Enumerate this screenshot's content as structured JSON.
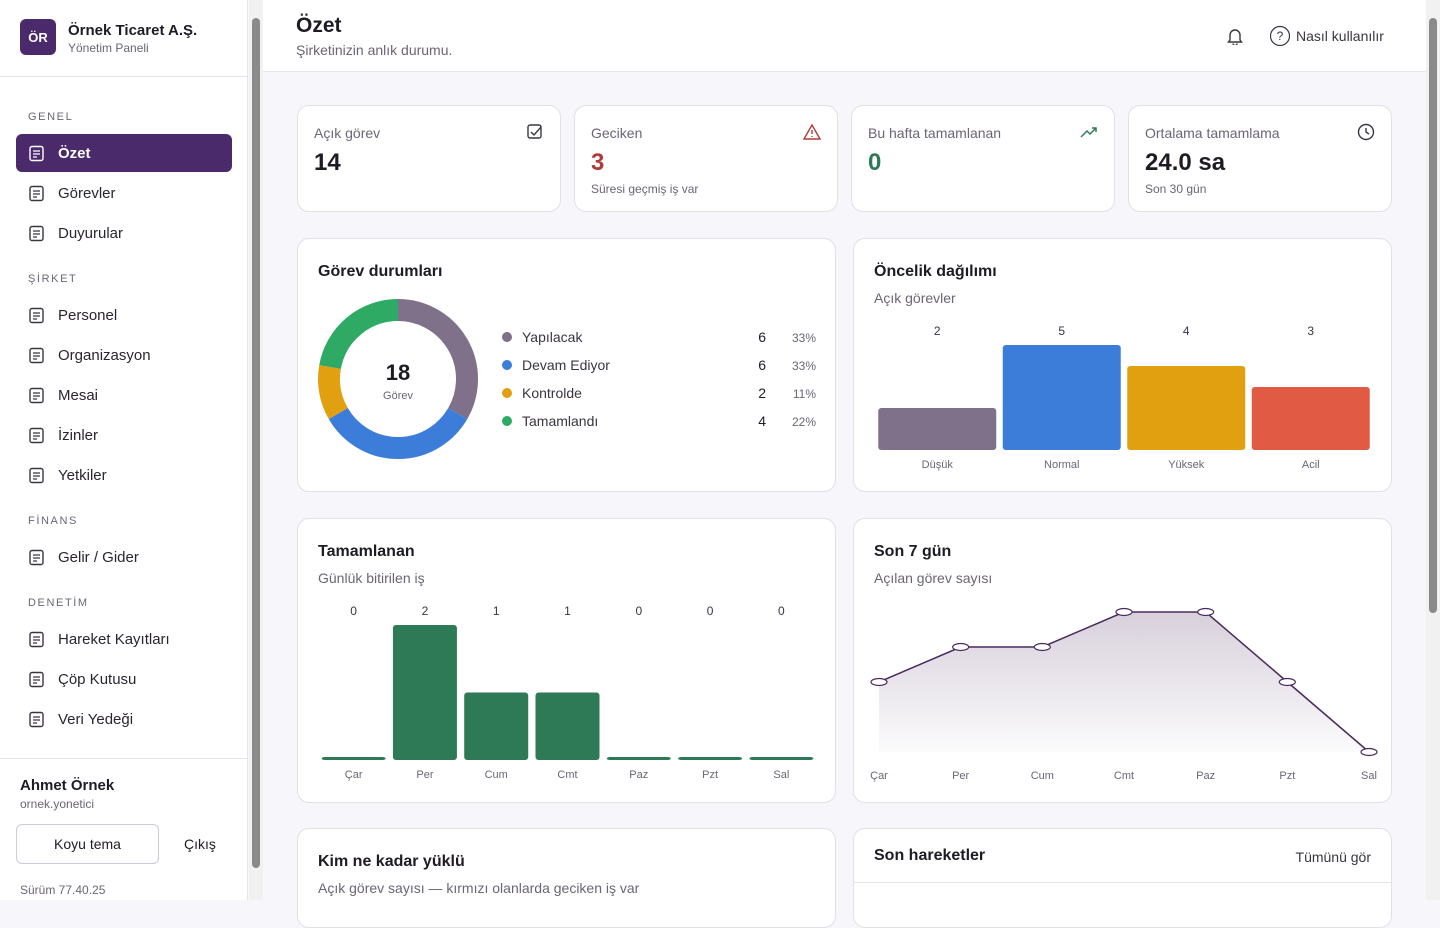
{
  "sidebar": {
    "logo": "ÖR",
    "company": "Örnek Ticaret A.Ş.",
    "subtitle": "Yönetim Paneli",
    "sections": [
      {
        "title": "GENEL",
        "items": [
          "Özet",
          "Görevler",
          "Duyurular"
        ]
      },
      {
        "title": "ŞİRKET",
        "items": [
          "Personel",
          "Organizasyon",
          "Mesai",
          "İzinler",
          "Yetkiler"
        ]
      },
      {
        "title": "FİNANS",
        "items": [
          "Gelir / Gider"
        ]
      },
      {
        "title": "DENETİM",
        "items": [
          "Hareket Kayıtları",
          "Çöp Kutusu",
          "Veri Yedeği"
        ]
      }
    ],
    "user": {
      "name": "Ahmet Örnek",
      "username": "ornek.yonetici"
    },
    "theme_button": "Koyu tema",
    "logout": "Çıkış",
    "version": "Sürüm 77.40.25"
  },
  "header": {
    "title": "Özet",
    "subtitle": "Şirketinizin anlık durumu.",
    "help": "Nasıl kullanılır"
  },
  "kpis": [
    {
      "label": "Açık görev",
      "value": 14
    },
    {
      "label": "Geciken",
      "value": 3,
      "note": "Süresi geçmiş iş var"
    },
    {
      "label": "Bu hafta tamamlanan",
      "value": 0
    },
    {
      "label": "Ortalama tamamlama",
      "value": "24.0 sa",
      "note": "Son 30 gün"
    }
  ],
  "chart_data": [
    {
      "type": "donut",
      "title": "Görev durumları",
      "center_value": 18,
      "center_label": "Görev",
      "categories": [
        "Yapılacak",
        "Devam Ediyor",
        "Kontrolde",
        "Tamamlandı"
      ],
      "values": [
        6,
        6,
        2,
        4
      ],
      "percent_labels": [
        "33%",
        "33%",
        "11%",
        "22%"
      ],
      "colors": [
        "#7e7189",
        "#3b7dd8",
        "#e0a010",
        "#2eaa64"
      ]
    },
    {
      "type": "bar",
      "title": "Öncelik dağılımı",
      "subtitle": "Açık görevler",
      "categories": [
        "Düşük",
        "Normal",
        "Yüksek",
        "Acil"
      ],
      "values": [
        2,
        5,
        4,
        3
      ],
      "colors": [
        "#7e7189",
        "#3b7dd8",
        "#e0a010",
        "#e05a44"
      ]
    },
    {
      "type": "bar",
      "title": "Tamamlanan",
      "subtitle": "Günlük bitirilen iş",
      "categories": [
        "Çar",
        "Per",
        "Cum",
        "Cmt",
        "Paz",
        "Pzt",
        "Sal"
      ],
      "values": [
        0,
        2,
        1,
        1,
        0,
        0,
        0
      ],
      "color": "#2e7a57"
    },
    {
      "type": "line",
      "title": "Son 7 gün",
      "subtitle": "Açılan görev sayısı",
      "categories": [
        "Çar",
        "Per",
        "Cum",
        "Cmt",
        "Paz",
        "Pzt",
        "Sal"
      ],
      "values": [
        2,
        3,
        3,
        4,
        4,
        2,
        0
      ],
      "color": "#4b2a5e"
    }
  ],
  "panels": {
    "workload": {
      "title": "Kim ne kadar yüklü",
      "subtitle": "Açık görev sayısı — kırmızı olanlarda geciken iş var"
    },
    "activity": {
      "title": "Son hareketler",
      "link": "Tümünü gör"
    }
  }
}
